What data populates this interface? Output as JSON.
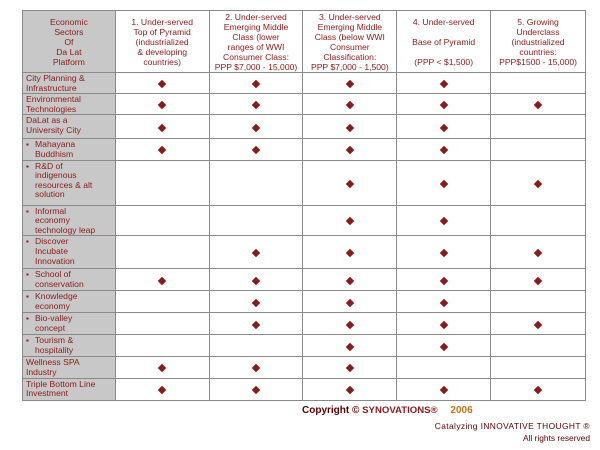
{
  "header": {
    "sectors": "Economic\nSectors\nOf\nDa Lat\nPlatform",
    "col1": "1. Under-served\nTop of Pyramid\n(industrialized\n& developing\ncountries)",
    "col2": "2. Under-served\nEmerging Middle\nClass (lower\nranges of WWI\nConsumer Class:\nPPP $7,000 - 15,000)",
    "col3": "3. Under-served\nEmerging Middle\nClass (below WWI\nConsumer\nClassification:\nPPP $7,000 - 1,500)",
    "col4": "4. Under-served\n\nBase of Pyramid\n\n(PPP < $1,500)",
    "col5": "5. Growing\nUnderclass\n(industrialized\ncountries:\nPPP$1500 - 15,000)"
  },
  "rows": [
    {
      "label": "City Planning &\nInfrastructure",
      "bullet": false,
      "marks": [
        true,
        true,
        true,
        true,
        false
      ]
    },
    {
      "label": "Environmental\nTechnologies",
      "bullet": false,
      "marks": [
        true,
        true,
        true,
        true,
        true
      ]
    },
    {
      "label": "DaLat as a\nUniversity City",
      "bullet": false,
      "marks": [
        true,
        true,
        true,
        true,
        false
      ]
    },
    {
      "label": "Mahayana\nBuddhism",
      "bullet": true,
      "marks": [
        true,
        true,
        true,
        true,
        false
      ]
    },
    {
      "label": "R&D of\nindigenous\nresources & alt\nsolution",
      "bullet": true,
      "marks": [
        false,
        false,
        true,
        true,
        true
      ]
    },
    {
      "label": "Informal\neconomy\ntechnology leap",
      "bullet": true,
      "marks": [
        false,
        false,
        true,
        true,
        false
      ]
    },
    {
      "label": "Discover\nIncubate\nInnovation",
      "bullet": true,
      "marks": [
        false,
        true,
        true,
        true,
        true
      ]
    },
    {
      "label": "School of\nconservation",
      "bullet": true,
      "marks": [
        true,
        true,
        true,
        true,
        true
      ]
    },
    {
      "label": "Knowledge\neconomy",
      "bullet": true,
      "marks": [
        false,
        true,
        true,
        true,
        false
      ]
    },
    {
      "label": "Bio-valley\nconcept",
      "bullet": true,
      "marks": [
        false,
        true,
        true,
        true,
        true
      ]
    },
    {
      "label": "Tourism &\nhospitality",
      "bullet": true,
      "marks": [
        false,
        false,
        true,
        true,
        false
      ]
    },
    {
      "label": "Wellness SPA\nIndustry",
      "bullet": false,
      "marks": [
        true,
        true,
        true,
        false,
        false
      ]
    },
    {
      "label": "Triple Bottom Line\nInvestment",
      "bullet": false,
      "marks": [
        true,
        true,
        true,
        true,
        true
      ]
    }
  ],
  "footer": {
    "copyright": "Copyright ©",
    "brand": "SYNOVATIONS®",
    "year": "2006",
    "tagline": "Catalyzing INNOVATIVE THOUGHT ®",
    "rights": "All rights reserved"
  },
  "colors": {
    "text": "#8b1a1a",
    "mark": "#8b1a1a",
    "label_background": "#c8c8c8",
    "year": "#b8741a"
  }
}
